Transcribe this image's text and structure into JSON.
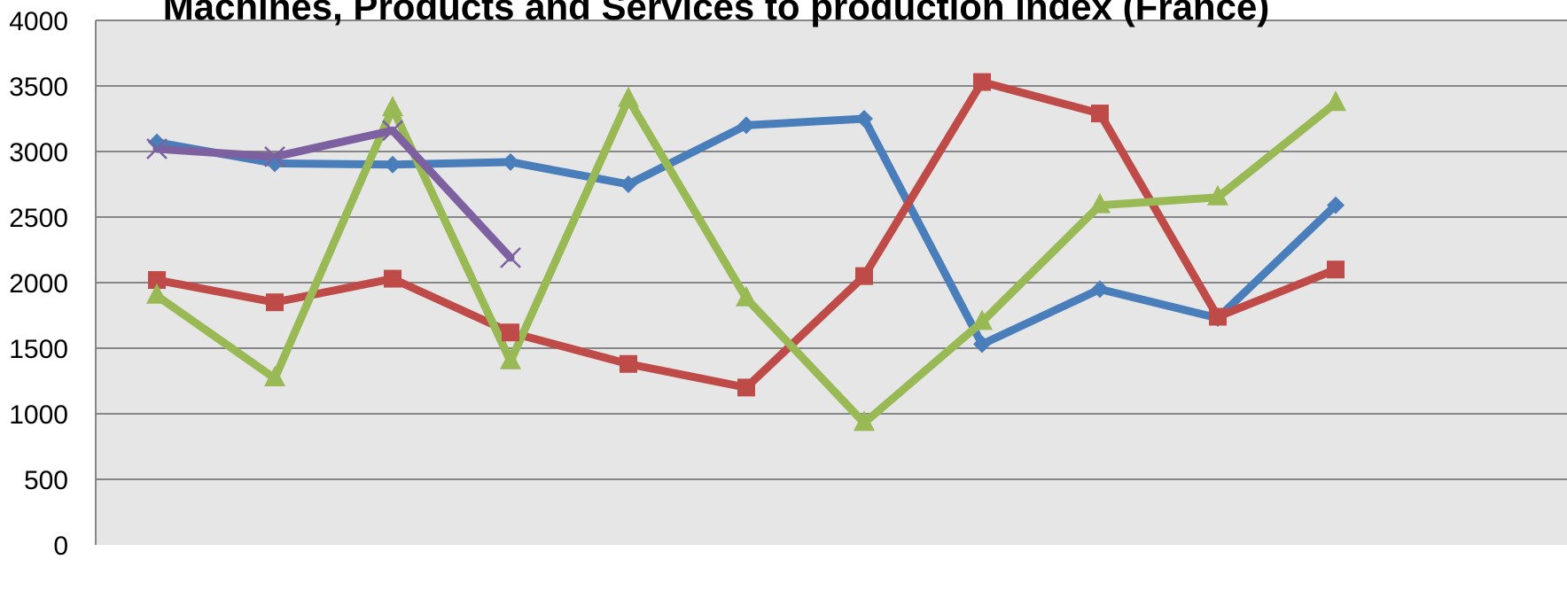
{
  "chart_data": {
    "type": "line",
    "title": "Machines, Products and Services  to production index (France)",
    "xlabel": "",
    "ylabel": "",
    "ylim": [
      0,
      4000
    ],
    "yticks": [
      0,
      500,
      1000,
      1500,
      2000,
      2500,
      3000,
      3500,
      4000
    ],
    "ytick_labels": [
      "0",
      "500",
      "1000",
      "1500",
      "2000",
      "2500",
      "3000",
      "3500",
      "4000"
    ],
    "grid": true,
    "legend": "none",
    "x": [
      1,
      2,
      3,
      4,
      5,
      6,
      7,
      8,
      9,
      10,
      11,
      12
    ],
    "series": [
      {
        "values": [
          3070,
          2910,
          2900,
          2920,
          2750,
          3200,
          3250,
          1530,
          1950,
          1730,
          2590,
          null
        ],
        "color": "#4a7ebb",
        "marker": "diamond"
      },
      {
        "values": [
          2020,
          1850,
          2030,
          1620,
          1380,
          1200,
          2050,
          3530,
          3290,
          1740,
          2100,
          null
        ],
        "color": "#be4b48",
        "marker": "square"
      },
      {
        "values": [
          1900,
          1270,
          3330,
          1400,
          3400,
          1880,
          930,
          1700,
          2590,
          2650,
          3370,
          null
        ],
        "color": "#98b954",
        "marker": "triangle"
      },
      {
        "values": [
          3020,
          2960,
          3160,
          2190,
          null,
          null,
          null,
          null,
          null,
          null,
          null,
          null
        ],
        "color": "#7d60a0",
        "marker": "x"
      }
    ],
    "plot_background": "#e6e6e6",
    "gridline_color": "#868686"
  }
}
